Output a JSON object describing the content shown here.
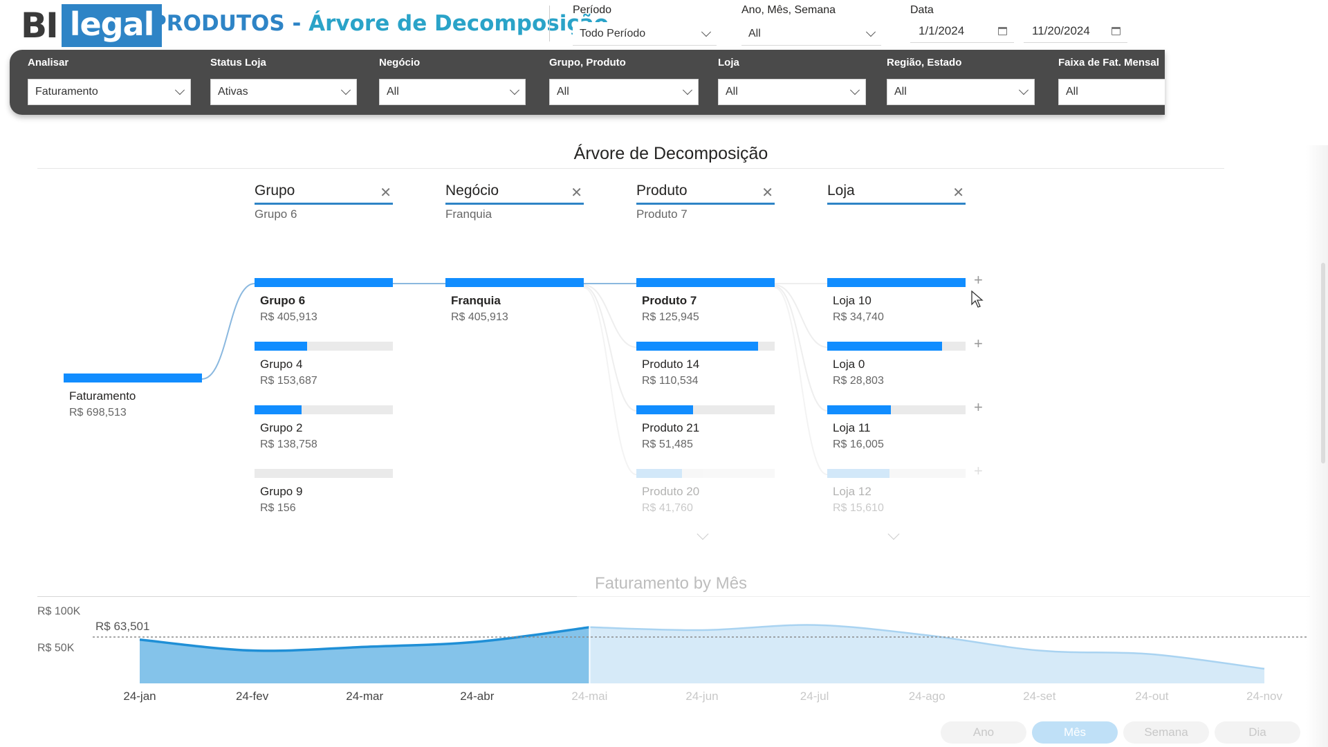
{
  "header": {
    "logo_bi": "BI",
    "logo_legal": "legal",
    "title_main": "PRODUTOS - ",
    "title_accent": "Árvore de Decomposição"
  },
  "top_filters": {
    "periodo": {
      "label": "Período",
      "value": "Todo Período"
    },
    "ano_mes_semana": {
      "label": "Ano, Mês, Semana",
      "value": "All"
    },
    "data": {
      "label": "Data",
      "start": "1/1/2024",
      "end": "11/20/2024"
    }
  },
  "band_filters": [
    {
      "label": "Analisar",
      "value": "Faturamento"
    },
    {
      "label": "Status Loja",
      "value": "Ativas"
    },
    {
      "label": "Negócio",
      "value": "All"
    },
    {
      "label": "Grupo, Produto",
      "value": "All"
    },
    {
      "label": "Loja",
      "value": "All"
    },
    {
      "label": "Região, Estado",
      "value": "All"
    },
    {
      "label": "Faixa de Fat. Mensal",
      "value": "All"
    }
  ],
  "tree": {
    "title": "Árvore de Decomposição",
    "root": {
      "name": "Faturamento",
      "value": "R$ 698,513",
      "fraction": 1.0
    },
    "columns": [
      {
        "header": "Grupo",
        "selected": "Grupo 6",
        "nodes": [
          {
            "name": "Grupo 6",
            "value": "R$ 405,913",
            "fraction": 1.0,
            "selected": true
          },
          {
            "name": "Grupo 4",
            "value": "R$ 153,687",
            "fraction": 0.38
          },
          {
            "name": "Grupo 2",
            "value": "R$ 138,758",
            "fraction": 0.34
          },
          {
            "name": "Grupo 9",
            "value": "R$ 156",
            "fraction": 0.0
          }
        ]
      },
      {
        "header": "Negócio",
        "selected": "Franquia",
        "nodes": [
          {
            "name": "Franquia",
            "value": "R$ 405,913",
            "fraction": 1.0,
            "selected": true
          }
        ]
      },
      {
        "header": "Produto",
        "selected": "Produto 7",
        "nodes": [
          {
            "name": "Produto 7",
            "value": "R$ 125,945",
            "fraction": 1.0,
            "selected": true
          },
          {
            "name": "Produto 14",
            "value": "R$ 110,534",
            "fraction": 0.88
          },
          {
            "name": "Produto 21",
            "value": "R$ 51,485",
            "fraction": 0.41
          },
          {
            "name": "Produto 20",
            "value": "R$ 41,760",
            "fraction": 0.33,
            "faded": true
          }
        ]
      },
      {
        "header": "Loja",
        "selected": "",
        "nodes": [
          {
            "name": "Loja 10",
            "value": "R$ 34,740",
            "fraction": 1.0
          },
          {
            "name": "Loja 0",
            "value": "R$ 28,803",
            "fraction": 0.83
          },
          {
            "name": "Loja 11",
            "value": "R$ 16,005",
            "fraction": 0.46
          },
          {
            "name": "Loja 12",
            "value": "R$ 15,610",
            "fraction": 0.45,
            "faded": true
          }
        ]
      }
    ]
  },
  "chart_data": {
    "type": "area",
    "title": "Faturamento by Mês",
    "categories": [
      "24-jan",
      "24-fev",
      "24-mar",
      "24-abr",
      "24-mai",
      "24-jun",
      "24-jul",
      "24-ago",
      "24-set",
      "24-out",
      "24-nov"
    ],
    "values": [
      60000,
      45000,
      50000,
      57000,
      77000,
      73000,
      80000,
      66000,
      45000,
      40000,
      20000
    ],
    "highlighted_count": 5,
    "y_ticks": [
      "R$ 100K",
      "R$ 50K"
    ],
    "y_tick_values": [
      100000,
      50000
    ],
    "ylim": [
      0,
      110000
    ],
    "reference_line": {
      "label": "R$ 63,501",
      "value": 63501
    },
    "colors": {
      "highlight": "#1f8fd6",
      "highlight_fill": "#6fb8e6",
      "faded_fill": "#d6eaf8",
      "faded_line": "#a9d3f1"
    }
  },
  "granularity": {
    "options": [
      "Ano",
      "Mês",
      "Semana",
      "Dia"
    ],
    "active": "Mês"
  }
}
